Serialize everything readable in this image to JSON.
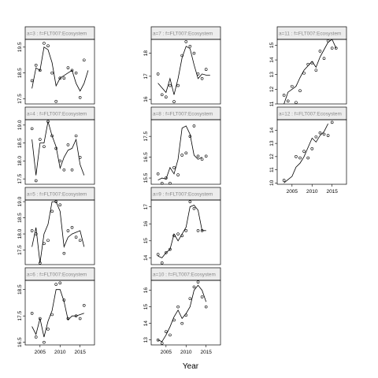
{
  "figure": {
    "xlabel": "Year",
    "strip_prefix": "FLT007:Ecosystem"
  },
  "chart_data": [
    {
      "type": "line",
      "panel": "a=3",
      "strip": "a=3 : f=FLT007:Ecosystem",
      "x": [
        2003,
        2004,
        2005,
        2006,
        2007,
        2008,
        2009,
        2010,
        2011,
        2012,
        2013,
        2014,
        2015,
        2016,
        2017
      ],
      "fit": [
        17.9,
        18.7,
        18.6,
        19.5,
        19.4,
        18.9,
        18.0,
        18.3,
        18.4,
        18.5,
        18.6,
        18.1,
        17.8,
        18.1,
        18.6
      ],
      "points": [
        18.2,
        18.8,
        18.6,
        19.65,
        19.55,
        18.5,
        17.4,
        18.3,
        18.3,
        18.7,
        18.6,
        18.5,
        17.55,
        19.0,
        null
      ],
      "yticks": [
        17.5,
        18.5,
        19.5
      ],
      "ylim": [
        17.3,
        19.8
      ]
    },
    {
      "type": "line",
      "panel": "a=4",
      "strip": "a=4 : f=FLT007:Ecosystem",
      "x": [
        2003,
        2004,
        2005,
        2006,
        2007,
        2008,
        2009,
        2010,
        2011,
        2012,
        2013,
        2014,
        2015,
        2016,
        2017
      ],
      "fit": [
        18.6,
        17.6,
        18.5,
        18.5,
        19.1,
        18.7,
        18.4,
        17.8,
        18.1,
        18.3,
        18.35,
        18.6,
        17.9,
        17.6,
        null
      ],
      "points": [
        18.9,
        17.45,
        18.6,
        18.4,
        19.1,
        18.7,
        18.35,
        18.0,
        17.75,
        18.45,
        17.75,
        18.7,
        18.1,
        null,
        null
      ],
      "yticks": [
        17.5,
        18.0,
        18.5,
        19.0
      ],
      "ylim": [
        17.35,
        19.15
      ]
    },
    {
      "type": "line",
      "panel": "a=5",
      "strip": "a=5 : f=FLT007:Ecosystem",
      "x": [
        2003,
        2004,
        2005,
        2006,
        2007,
        2008,
        2009,
        2010,
        2011,
        2012,
        2013,
        2014,
        2015,
        2016,
        2017
      ],
      "fit": [
        17.6,
        18.2,
        17.1,
        18.0,
        18.3,
        19.0,
        19.0,
        18.7,
        17.6,
        17.9,
        18.0,
        18.05,
        18.1,
        17.6,
        null
      ],
      "points": [
        18.1,
        18.0,
        17.1,
        17.7,
        17.8,
        18.7,
        19.0,
        18.9,
        17.4,
        18.1,
        18.2,
        17.9,
        17.8,
        null,
        null
      ],
      "yticks": [
        17.5,
        18.0,
        18.5,
        19.0
      ],
      "ylim": [
        17.05,
        19.05
      ]
    },
    {
      "type": "line",
      "panel": "a=6",
      "strip": "a=6 : f=FLT007:Ecosystem",
      "x": [
        2003,
        2004,
        2005,
        2006,
        2007,
        2008,
        2009,
        2010,
        2011,
        2012,
        2013,
        2014,
        2015,
        2016,
        2017
      ],
      "fit": [
        17.1,
        16.8,
        17.4,
        16.7,
        17.3,
        17.7,
        18.5,
        18.5,
        18.05,
        17.35,
        17.5,
        17.5,
        17.55,
        17.6,
        null
      ],
      "points": [
        17.6,
        16.7,
        17.4,
        16.5,
        17.0,
        17.55,
        18.7,
        18.75,
        18.1,
        17.4,
        null,
        17.5,
        17.4,
        17.9,
        null
      ],
      "yticks": [
        16.5,
        17.5,
        18.5
      ],
      "ylim": [
        16.4,
        18.85
      ]
    },
    {
      "type": "line",
      "panel": "a=7",
      "strip": "a=7 : f=FLT007:Ecosystem",
      "x": [
        2003,
        2004,
        2005,
        2006,
        2007,
        2008,
        2009,
        2010,
        2011,
        2012,
        2013,
        2014,
        2015,
        2016,
        2017
      ],
      "fit": [
        16.7,
        16.5,
        16.3,
        16.9,
        16.2,
        16.9,
        17.8,
        18.3,
        18.2,
        17.5,
        16.9,
        17.1,
        17.05,
        17.05,
        null
      ],
      "points": [
        17.1,
        16.2,
        16.1,
        16.6,
        15.9,
        16.6,
        17.9,
        18.5,
        18.3,
        18.0,
        17.1,
        16.9,
        17.3,
        null,
        null
      ],
      "yticks": [
        16.0,
        17.0,
        18.0
      ],
      "ylim": [
        15.8,
        18.6
      ]
    },
    {
      "type": "line",
      "panel": "a=8",
      "strip": "a=8 : f=FLT007:Ecosystem",
      "x": [
        2003,
        2004,
        2005,
        2006,
        2007,
        2008,
        2009,
        2010,
        2011,
        2012,
        2013,
        2014,
        2015,
        2016,
        2017
      ],
      "fit": [
        15.4,
        15.5,
        15.45,
        16.0,
        15.7,
        16.4,
        17.9,
        18.0,
        17.6,
        16.6,
        16.4,
        16.5,
        null,
        null,
        null
      ],
      "points": [
        15.7,
        15.25,
        15.5,
        15.25,
        16.0,
        15.65,
        16.6,
        16.7,
        17.5,
        18.0,
        16.55,
        16.4,
        16.55,
        null,
        null
      ],
      "yticks": [
        15.5,
        16.5,
        17.5
      ],
      "ylim": [
        15.2,
        18.3
      ]
    },
    {
      "type": "line",
      "panel": "a=9",
      "strip": "a=9 : f=FLT007:Ecosystem",
      "x": [
        2003,
        2004,
        2005,
        2006,
        2007,
        2008,
        2009,
        2010,
        2011,
        2012,
        2013,
        2014,
        2015,
        2016,
        2017
      ],
      "fit": [
        14.1,
        14.0,
        14.3,
        14.5,
        15.4,
        15.0,
        15.4,
        15.8,
        17.0,
        17.1,
        16.8,
        15.6,
        15.6,
        null,
        null
      ],
      "points": [
        14.2,
        13.7,
        14.3,
        14.5,
        15.3,
        15.4,
        15.3,
        15.6,
        17.3,
        16.9,
        15.6,
        15.6,
        null,
        null,
        null
      ],
      "yticks": [
        14,
        15,
        16,
        17
      ],
      "ylim": [
        13.6,
        17.4
      ]
    },
    {
      "type": "line",
      "panel": "a=10",
      "strip": "a=10 : f=FLT007:Ecosystem",
      "x": [
        2003,
        2004,
        2005,
        2006,
        2007,
        2008,
        2009,
        2010,
        2011,
        2012,
        2013,
        2014,
        2015,
        2016,
        2017
      ],
      "fit": [
        13.0,
        12.9,
        13.3,
        13.8,
        14.4,
        14.8,
        14.3,
        14.6,
        15.0,
        16.0,
        16.3,
        16.0,
        15.3,
        null,
        null
      ],
      "points": [
        13.0,
        12.8,
        13.5,
        13.3,
        14.2,
        15.0,
        14.0,
        14.5,
        15.5,
        16.2,
        16.5,
        15.6,
        15.0,
        null,
        null
      ],
      "yticks": [
        13,
        14,
        15,
        16
      ],
      "ylim": [
        12.7,
        16.6
      ]
    },
    {
      "type": "line",
      "panel": "a=11",
      "strip": "a=11 : f=FLT007:Ecosystem",
      "x": [
        2003,
        2004,
        2005,
        2006,
        2007,
        2008,
        2009,
        2010,
        2011,
        2012,
        2013,
        2014,
        2015,
        2016,
        2017
      ],
      "fit": [
        11.0,
        11.8,
        12.0,
        12.2,
        12.8,
        13.3,
        13.6,
        13.9,
        13.5,
        14.2,
        14.7,
        15.2,
        15.4,
        14.8,
        null
      ],
      "points": [
        11.6,
        11.2,
        12.2,
        11.1,
        11.9,
        13.1,
        13.7,
        13.8,
        13.3,
        14.6,
        14.1,
        15.3,
        14.8,
        14.8,
        null
      ],
      "yticks": [
        11,
        12,
        13,
        14,
        15
      ],
      "ylim": [
        11.0,
        15.4
      ]
    },
    {
      "type": "line",
      "panel": "a=12",
      "strip": "a=12 : f=FLT007:Ecosystem",
      "x": [
        2003,
        2004,
        2005,
        2006,
        2007,
        2008,
        2009,
        2010,
        2011,
        2012,
        2013,
        2014,
        2015,
        2016,
        2017
      ],
      "fit": [
        10.0,
        10.25,
        10.5,
        11.2,
        11.5,
        12.0,
        12.7,
        13.4,
        13.1,
        13.6,
        13.9,
        14.5,
        null,
        null,
        null
      ],
      "points": [
        10.2,
        null,
        null,
        12.0,
        11.9,
        12.4,
        11.9,
        12.6,
        13.5,
        13.8,
        13.7,
        13.6,
        14.6,
        null,
        null
      ],
      "yticks": [
        10,
        11,
        12,
        13,
        14
      ],
      "ylim": [
        9.9,
        14.8
      ]
    }
  ]
}
